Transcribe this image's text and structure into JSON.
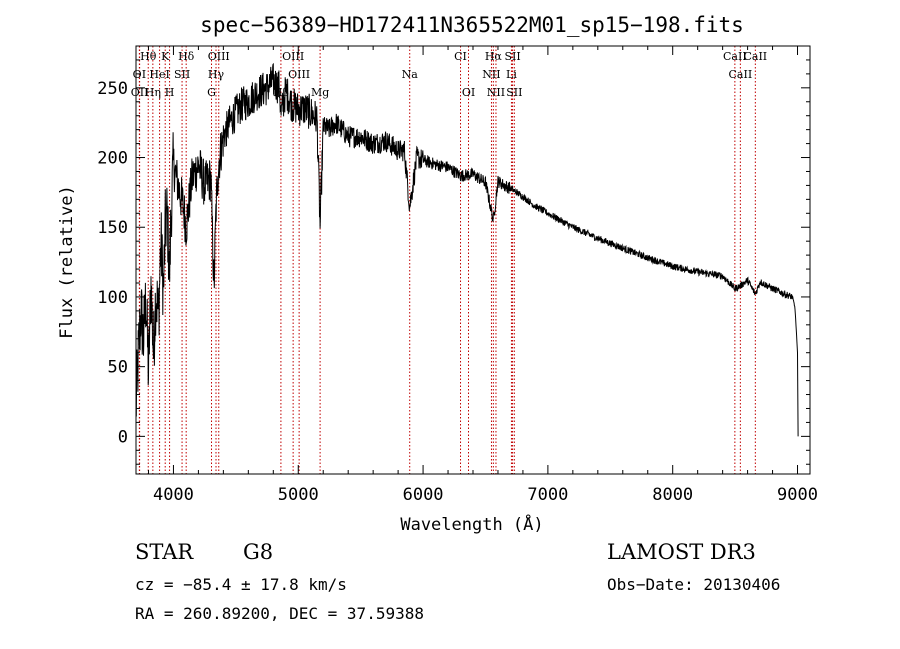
{
  "chart_data": {
    "type": "line",
    "title": "spec−56389−HD172411N365522M01_sp15−198.fits",
    "xlabel": "Wavelength (Å)",
    "ylabel": "Flux (relative)",
    "xlim": [
      3700,
      9100
    ],
    "ylim": [
      -27,
      280
    ],
    "xticks": [
      4000,
      5000,
      6000,
      7000,
      8000,
      9000
    ],
    "yticks": [
      0,
      50,
      100,
      150,
      200,
      250
    ],
    "grid": false,
    "series": [
      {
        "name": "spectrum",
        "x": [
          3700,
          3720,
          3740,
          3760,
          3780,
          3800,
          3820,
          3840,
          3860,
          3880,
          3900,
          3920,
          3935,
          3950,
          3968,
          3985,
          4000,
          4050,
          4080,
          4101,
          4150,
          4200,
          4250,
          4300,
          4325,
          4340,
          4360,
          4400,
          4450,
          4500,
          4550,
          4600,
          4650,
          4700,
          4750,
          4800,
          4850,
          4861,
          4900,
          4950,
          5000,
          5050,
          5100,
          5150,
          5175,
          5200,
          5250,
          5300,
          5400,
          5500,
          5600,
          5700,
          5800,
          5850,
          5893,
          5950,
          6000,
          6100,
          6200,
          6300,
          6400,
          6500,
          6563,
          6600,
          6650,
          6700,
          6800,
          6900,
          7000,
          7200,
          7400,
          7600,
          7800,
          8000,
          8200,
          8400,
          8498,
          8542,
          8600,
          8662,
          8700,
          8800,
          8900,
          8960,
          8980,
          9000,
          9005
        ],
        "y": [
          20,
          60,
          90,
          70,
          100,
          45,
          110,
          60,
          105,
          85,
          140,
          105,
          150,
          160,
          115,
          170,
          195,
          175,
          165,
          150,
          185,
          195,
          180,
          185,
          105,
          160,
          195,
          215,
          225,
          232,
          238,
          240,
          245,
          248,
          250,
          255,
          250,
          230,
          248,
          238,
          235,
          235,
          232,
          228,
          150,
          222,
          220,
          225,
          215,
          215,
          210,
          212,
          205,
          205,
          165,
          200,
          198,
          195,
          193,
          187,
          188,
          182,
          155,
          183,
          180,
          178,
          172,
          165,
          160,
          150,
          142,
          135,
          128,
          122,
          118,
          115,
          106,
          108,
          112,
          102,
          111,
          106,
          102,
          100,
          92,
          60,
          0
        ]
      }
    ],
    "annotations": [
      {
        "label": "Hθ",
        "x": 3798
      },
      {
        "label": "K",
        "x": 3934
      },
      {
        "label": "Hδ",
        "x": 4102
      },
      {
        "label": "OIII",
        "x": 4363
      },
      {
        "label": "OIII",
        "x": 4959
      },
      {
        "label": "CI",
        "x": 6300
      },
      {
        "label": "Hα",
        "x": 6563
      },
      {
        "label": "SII",
        "x": 6717
      },
      {
        "label": "CaII",
        "x": 8498
      },
      {
        "label": "OI",
        "x": 3727
      },
      {
        "label": "HeI",
        "x": 3889
      },
      {
        "label": "SII",
        "x": 4069
      },
      {
        "label": "Hγ",
        "x": 4341
      },
      {
        "label": "OIII",
        "x": 5007
      },
      {
        "label": "Na",
        "x": 5893
      },
      {
        "label": "NII",
        "x": 6548
      },
      {
        "label": "Li",
        "x": 6708
      },
      {
        "label": "CaII",
        "x": 8542
      },
      {
        "label": "OII",
        "x": 3729
      },
      {
        "label": "Hη",
        "x": 3835
      },
      {
        "label": "H",
        "x": 3969
      },
      {
        "label": "G",
        "x": 4305
      },
      {
        "label": "Hβ",
        "x": 4861
      },
      {
        "label": "Mg",
        "x": 5175
      },
      {
        "label": "OI",
        "x": 6364
      },
      {
        "label": "NII",
        "x": 6584
      },
      {
        "label": "SII",
        "x": 6731
      },
      {
        "label": "CaII",
        "x": 8662
      }
    ]
  },
  "info": {
    "object_type": "STAR",
    "subclass": "G8",
    "survey": "LAMOST DR3",
    "redshift": "cz = −85.4 ± 17.8 km/s",
    "obs_date": "Obs−Date: 20130406",
    "coords": "RA = 260.89200, DEC =  37.59388"
  }
}
